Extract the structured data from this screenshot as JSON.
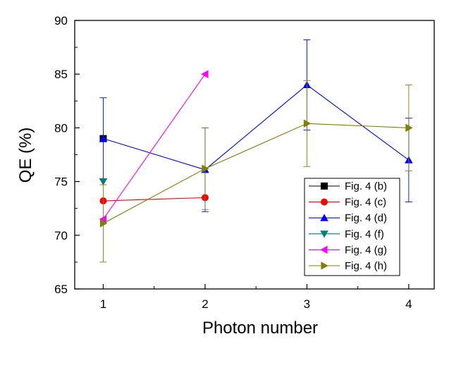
{
  "chart_data": {
    "type": "line",
    "title": "",
    "xlabel": "Photon number",
    "ylabel": "QE (%)",
    "xlim": [
      0.72,
      4.25
    ],
    "ylim": [
      65,
      90
    ],
    "xticks": [
      1,
      2,
      3,
      4
    ],
    "yticks": [
      65,
      70,
      75,
      80,
      85,
      90
    ],
    "grid": false,
    "legend_position": "lower-right",
    "series": [
      {
        "name": "Fig. 4 (b)",
        "color": "#000000",
        "marker": "square",
        "points": [
          {
            "x": 1,
            "y": 79.0
          }
        ]
      },
      {
        "name": "Fig. 4 (c)",
        "color": "#ff0000",
        "marker": "circle",
        "points": [
          {
            "x": 1,
            "y": 73.2
          },
          {
            "x": 2,
            "y": 73.5
          }
        ]
      },
      {
        "name": "Fig. 4 (d)",
        "color": "#0000ff",
        "marker": "triangle-up",
        "points": [
          {
            "x": 1,
            "y": 79.0,
            "err": 3.8
          },
          {
            "x": 2,
            "y": 76.1,
            "err": 3.9
          },
          {
            "x": 3,
            "y": 84.0,
            "err": 4.2
          },
          {
            "x": 4,
            "y": 77.0,
            "err": 3.9
          }
        ]
      },
      {
        "name": "Fig. 4 (f)",
        "color": "#008080",
        "marker": "triangle-down",
        "points": [
          {
            "x": 1,
            "y": 75.0
          }
        ]
      },
      {
        "name": "Fig. 4 (g)",
        "color": "#ff00ff",
        "marker": "triangle-left",
        "points": [
          {
            "x": 1,
            "y": 71.5
          },
          {
            "x": 2,
            "y": 85.0
          }
        ]
      },
      {
        "name": "Fig. 4 (h)",
        "color": "#808000",
        "marker": "triangle-right",
        "points": [
          {
            "x": 1,
            "y": 71.1,
            "err": 3.6
          },
          {
            "x": 2,
            "y": 76.2,
            "err": 3.8
          },
          {
            "x": 3,
            "y": 80.4,
            "err": 4.0
          },
          {
            "x": 4,
            "y": 80.0,
            "err": 4.0
          }
        ]
      }
    ]
  }
}
